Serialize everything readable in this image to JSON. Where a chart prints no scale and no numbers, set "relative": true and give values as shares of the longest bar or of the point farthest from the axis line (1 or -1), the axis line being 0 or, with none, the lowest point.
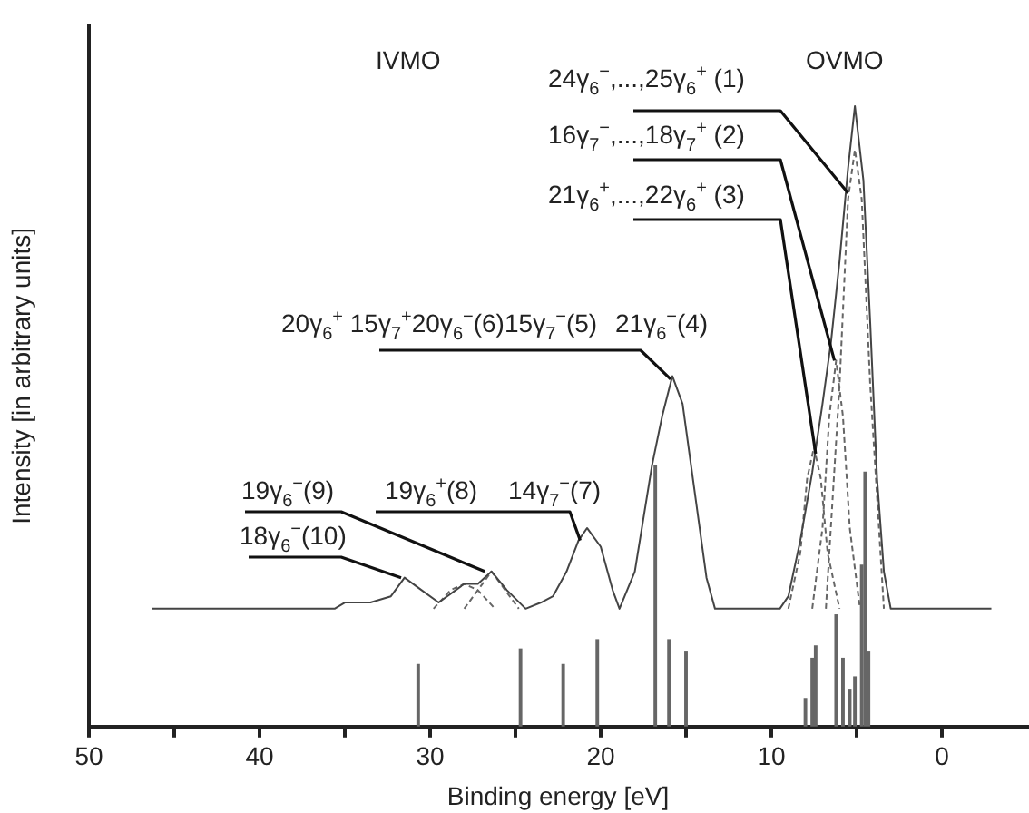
{
  "chart_data": {
    "type": "line",
    "xlabel": "Binding energy [eV]",
    "ylabel": "Intensity [in arbitrary units]",
    "relative": true,
    "xlim": [
      50,
      -5
    ],
    "xticks": [
      50,
      {
        "value": 45,
        "label": null
      },
      40,
      {
        "value": 35,
        "label": null
      },
      30,
      {
        "value": 25,
        "label": null
      },
      20,
      {
        "value": 15,
        "label": null
      },
      10,
      {
        "value": 5,
        "label": null
      },
      0
    ],
    "series": [
      {
        "color": "#444444",
        "x": [
          46.3,
          35.6,
          35.0,
          33.5,
          32.3,
          31.5,
          30.5,
          29.5,
          28.5,
          28.0,
          27.2,
          26.4,
          25.5,
          24.4,
          23.5,
          22.8,
          22.0,
          21.3,
          20.8,
          20.0,
          19.3,
          18.9,
          18.0,
          17.0,
          16.4,
          15.8,
          15.2,
          14.5,
          13.8,
          13.3,
          9.5,
          9.0,
          8.3,
          7.6,
          7.0,
          6.5,
          6.0,
          5.5,
          5.1,
          4.6,
          4.2,
          3.8,
          3.4,
          3.0,
          -2.9
        ],
        "values": [
          0.19,
          0.19,
          0.2,
          0.2,
          0.21,
          0.24,
          0.22,
          0.2,
          0.22,
          0.23,
          0.23,
          0.25,
          0.22,
          0.19,
          0.2,
          0.21,
          0.25,
          0.3,
          0.32,
          0.29,
          0.22,
          0.19,
          0.25,
          0.42,
          0.5,
          0.565,
          0.52,
          0.38,
          0.24,
          0.19,
          0.19,
          0.21,
          0.3,
          0.41,
          0.52,
          0.62,
          0.75,
          0.9,
          1.0,
          0.88,
          0.65,
          0.4,
          0.25,
          0.19,
          0.19
        ]
      },
      {
        "line_style": "dashed",
        "color": "#666666",
        "x": [
          9.0,
          8.3,
          7.9,
          7.5,
          7.1,
          6.7,
          6.0
        ],
        "values": [
          0.19,
          0.28,
          0.4,
          0.45,
          0.4,
          0.28,
          0.19
        ]
      },
      {
        "line_style": "dashed",
        "color": "#666666",
        "x": [
          7.6,
          7.0,
          6.6,
          6.2,
          5.8,
          5.4,
          4.8
        ],
        "values": [
          0.19,
          0.32,
          0.5,
          0.59,
          0.5,
          0.32,
          0.19
        ]
      },
      {
        "line_style": "dashed",
        "color": "#666666",
        "x": [
          6.8,
          6.0,
          5.5,
          5.1,
          4.7,
          4.2,
          3.4
        ],
        "values": [
          0.19,
          0.55,
          0.85,
          0.93,
          0.85,
          0.55,
          0.19
        ]
      },
      {
        "line_style": "dashed",
        "color": "#666666",
        "x": [
          29.8,
          28.8,
          28.0,
          27.2,
          26.2
        ],
        "values": [
          0.19,
          0.22,
          0.23,
          0.22,
          0.19
        ]
      },
      {
        "line_style": "dashed",
        "color": "#666666",
        "x": [
          28.0,
          27.2,
          26.4,
          25.6,
          24.8
        ],
        "values": [
          0.19,
          0.22,
          0.25,
          0.22,
          0.19
        ]
      },
      {
        "type": "bar",
        "color": "#666666",
        "x": [
          30.7,
          24.7,
          22.2,
          20.2,
          16.8,
          16.0,
          15.0,
          8.0,
          7.6,
          7.4,
          6.2,
          5.8,
          5.4,
          5.1,
          4.7,
          4.5,
          4.3
        ],
        "values": [
          0.1,
          0.125,
          0.1,
          0.14,
          0.42,
          0.14,
          0.12,
          0.045,
          0.11,
          0.13,
          0.18,
          0.11,
          0.06,
          0.08,
          0.26,
          0.41,
          0.12
        ]
      }
    ],
    "annotations": [
      "IVMO",
      "OVMO",
      {
        "text": "24γ$_{6}$$^{−}$,...,25γ$_{6}$$^{+}$ (1)",
        "x": 5.5,
        "y": 0.86
      },
      {
        "text": "16γ$_{7}$$^{−}$,...,18γ$_{7}$$^{+}$ (2)",
        "x": 6.3,
        "y": 0.59
      },
      {
        "text": "21γ$_{6}$$^{+}$,...,22γ$_{6}$$^{+}$ (3)",
        "x": 7.4,
        "y": 0.44
      },
      "20γ$_{6}$$^{+}$ 15γ$_{7}$$^{+}$20γ$_{6}$$^{−}$(6)",
      "15γ$_{7}$$^{−}$(5)",
      {
        "text": "21γ$_{6}$$^{−}$(4)",
        "x": 15.9,
        "y": 0.56
      },
      {
        "text": "14γ$_{7}$$^{−}$(7)",
        "x": 21.2,
        "y": 0.3
      },
      "19γ$_{6}$$^{+}$(8)",
      {
        "text": "19γ$_{6}$$^{−}$(9)",
        "x": 26.8,
        "y": 0.25
      },
      {
        "text": "18γ$_{6}$$^{−}$(10)",
        "x": 31.7,
        "y": 0.24
      }
    ]
  }
}
